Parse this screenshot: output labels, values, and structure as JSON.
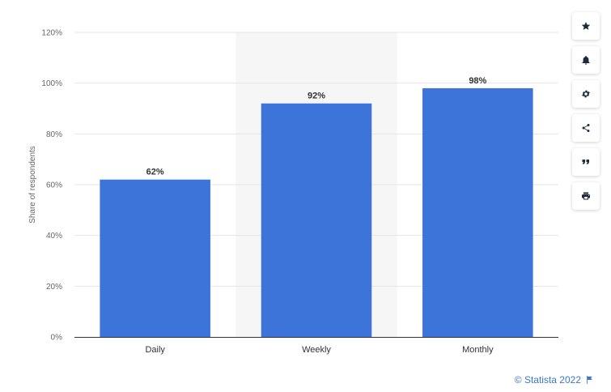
{
  "chart_data": {
    "type": "bar",
    "categories": [
      "Daily",
      "Weekly",
      "Monthly"
    ],
    "values": [
      62,
      92,
      98
    ],
    "value_labels": [
      "62%",
      "92%",
      "98%"
    ],
    "ylabel": "Share of respondents",
    "ylim": [
      0,
      120
    ],
    "yticks": [
      0,
      20,
      40,
      60,
      80,
      100,
      120
    ],
    "ytick_labels": [
      "0%",
      "20%",
      "40%",
      "60%",
      "80%",
      "100%",
      "120%"
    ],
    "grid": true,
    "highlighted_category": "Weekly",
    "colors": {
      "bar": "#3d74d9",
      "highlight": "#f6f6f6",
      "grid": "#e6e6e6",
      "axis": "#333333"
    }
  },
  "toolbar": {
    "buttons": [
      {
        "name": "favorite-button",
        "icon": "star-icon"
      },
      {
        "name": "notification-button",
        "icon": "bell-icon"
      },
      {
        "name": "settings-button",
        "icon": "gear-icon"
      },
      {
        "name": "share-button",
        "icon": "share-icon"
      },
      {
        "name": "cite-button",
        "icon": "quote-icon"
      },
      {
        "name": "print-button",
        "icon": "printer-icon"
      }
    ]
  },
  "footer": {
    "credit": "© Statista 2022",
    "flag_icon": "flag-icon"
  }
}
